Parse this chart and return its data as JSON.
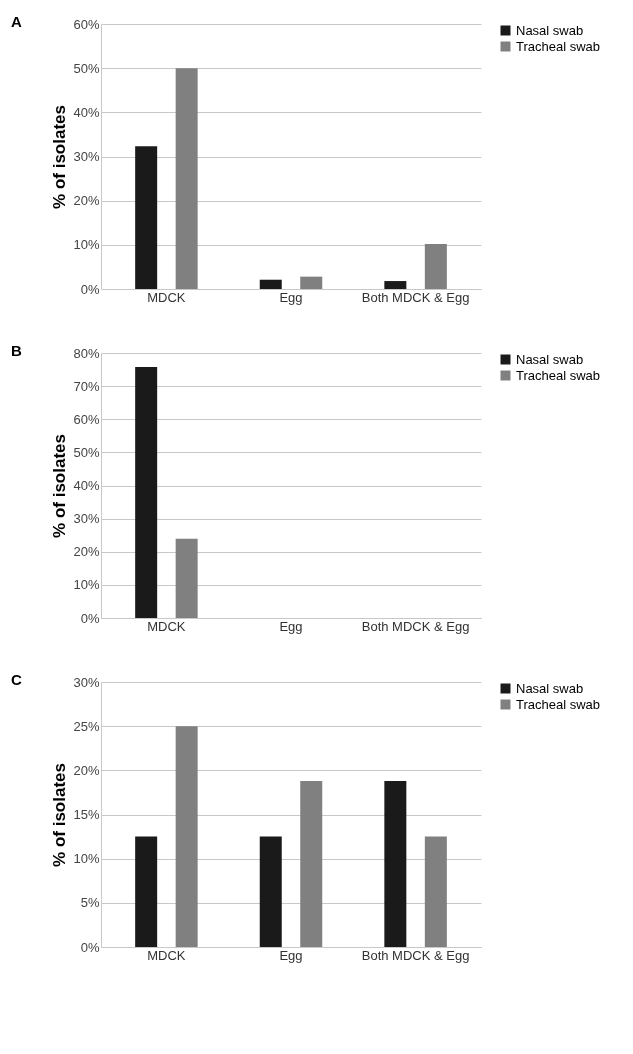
{
  "chart_data": [
    {
      "type": "bar",
      "title": "A",
      "ylabel": "% of isolates",
      "categories": [
        "MDCK",
        "Egg",
        "Both MDCK & Egg"
      ],
      "series": [
        {
          "name": "Nasal swab",
          "color": "#1a1a1a",
          "values": [
            32.3,
            2.1,
            1.8
          ]
        },
        {
          "name": "Tracheal swab",
          "color": "#808080",
          "values": [
            50,
            2.8,
            10.2
          ]
        }
      ],
      "ylim": [
        0,
        60
      ],
      "yticks": [
        {
          "value": 0,
          "label": "0%"
        },
        {
          "value": 10,
          "label": "10%"
        },
        {
          "value": 20,
          "label": "20%"
        },
        {
          "value": 30,
          "label": "30%"
        },
        {
          "value": 40,
          "label": "40%"
        },
        {
          "value": 50,
          "label": "50%"
        },
        {
          "value": 60,
          "label": "60%"
        }
      ],
      "grid": "y",
      "legend": "right"
    },
    {
      "type": "bar",
      "title": "B",
      "ylabel": "% of isolates",
      "categories": [
        "MDCK",
        "Egg",
        "Both MDCK & Egg"
      ],
      "series": [
        {
          "name": "Nasal swab",
          "color": "#1a1a1a",
          "values": [
            75.8,
            0,
            0
          ]
        },
        {
          "name": "Tracheal swab",
          "color": "#808080",
          "values": [
            23.9,
            0,
            0
          ]
        }
      ],
      "ylim": [
        0,
        80
      ],
      "yticks": [
        {
          "value": 0,
          "label": "0%"
        },
        {
          "value": 10,
          "label": "10%"
        },
        {
          "value": 20,
          "label": "20%"
        },
        {
          "value": 30,
          "label": "30%"
        },
        {
          "value": 40,
          "label": "40%"
        },
        {
          "value": 50,
          "label": "50%"
        },
        {
          "value": 60,
          "label": "60%"
        },
        {
          "value": 70,
          "label": "70%"
        },
        {
          "value": 80,
          "label": "80%"
        }
      ],
      "grid": "y",
      "legend": "right"
    },
    {
      "type": "bar",
      "title": "C",
      "ylabel": "% of isolates",
      "categories": [
        "MDCK",
        "Egg",
        "Both MDCK & Egg"
      ],
      "series": [
        {
          "name": "Nasal swab",
          "color": "#1a1a1a",
          "values": [
            12.5,
            12.5,
            18.8
          ]
        },
        {
          "name": "Tracheal swab",
          "color": "#808080",
          "values": [
            25,
            18.8,
            12.5
          ]
        }
      ],
      "ylim": [
        0,
        30
      ],
      "yticks": [
        {
          "value": 0,
          "label": "0%"
        },
        {
          "value": 5,
          "label": "5%"
        },
        {
          "value": 10,
          "label": "10%"
        },
        {
          "value": 15,
          "label": "15%"
        },
        {
          "value": 20,
          "label": "20%"
        },
        {
          "value": 25,
          "label": "25%"
        },
        {
          "value": 30,
          "label": "30%"
        }
      ],
      "grid": "y",
      "legend": "right"
    }
  ]
}
